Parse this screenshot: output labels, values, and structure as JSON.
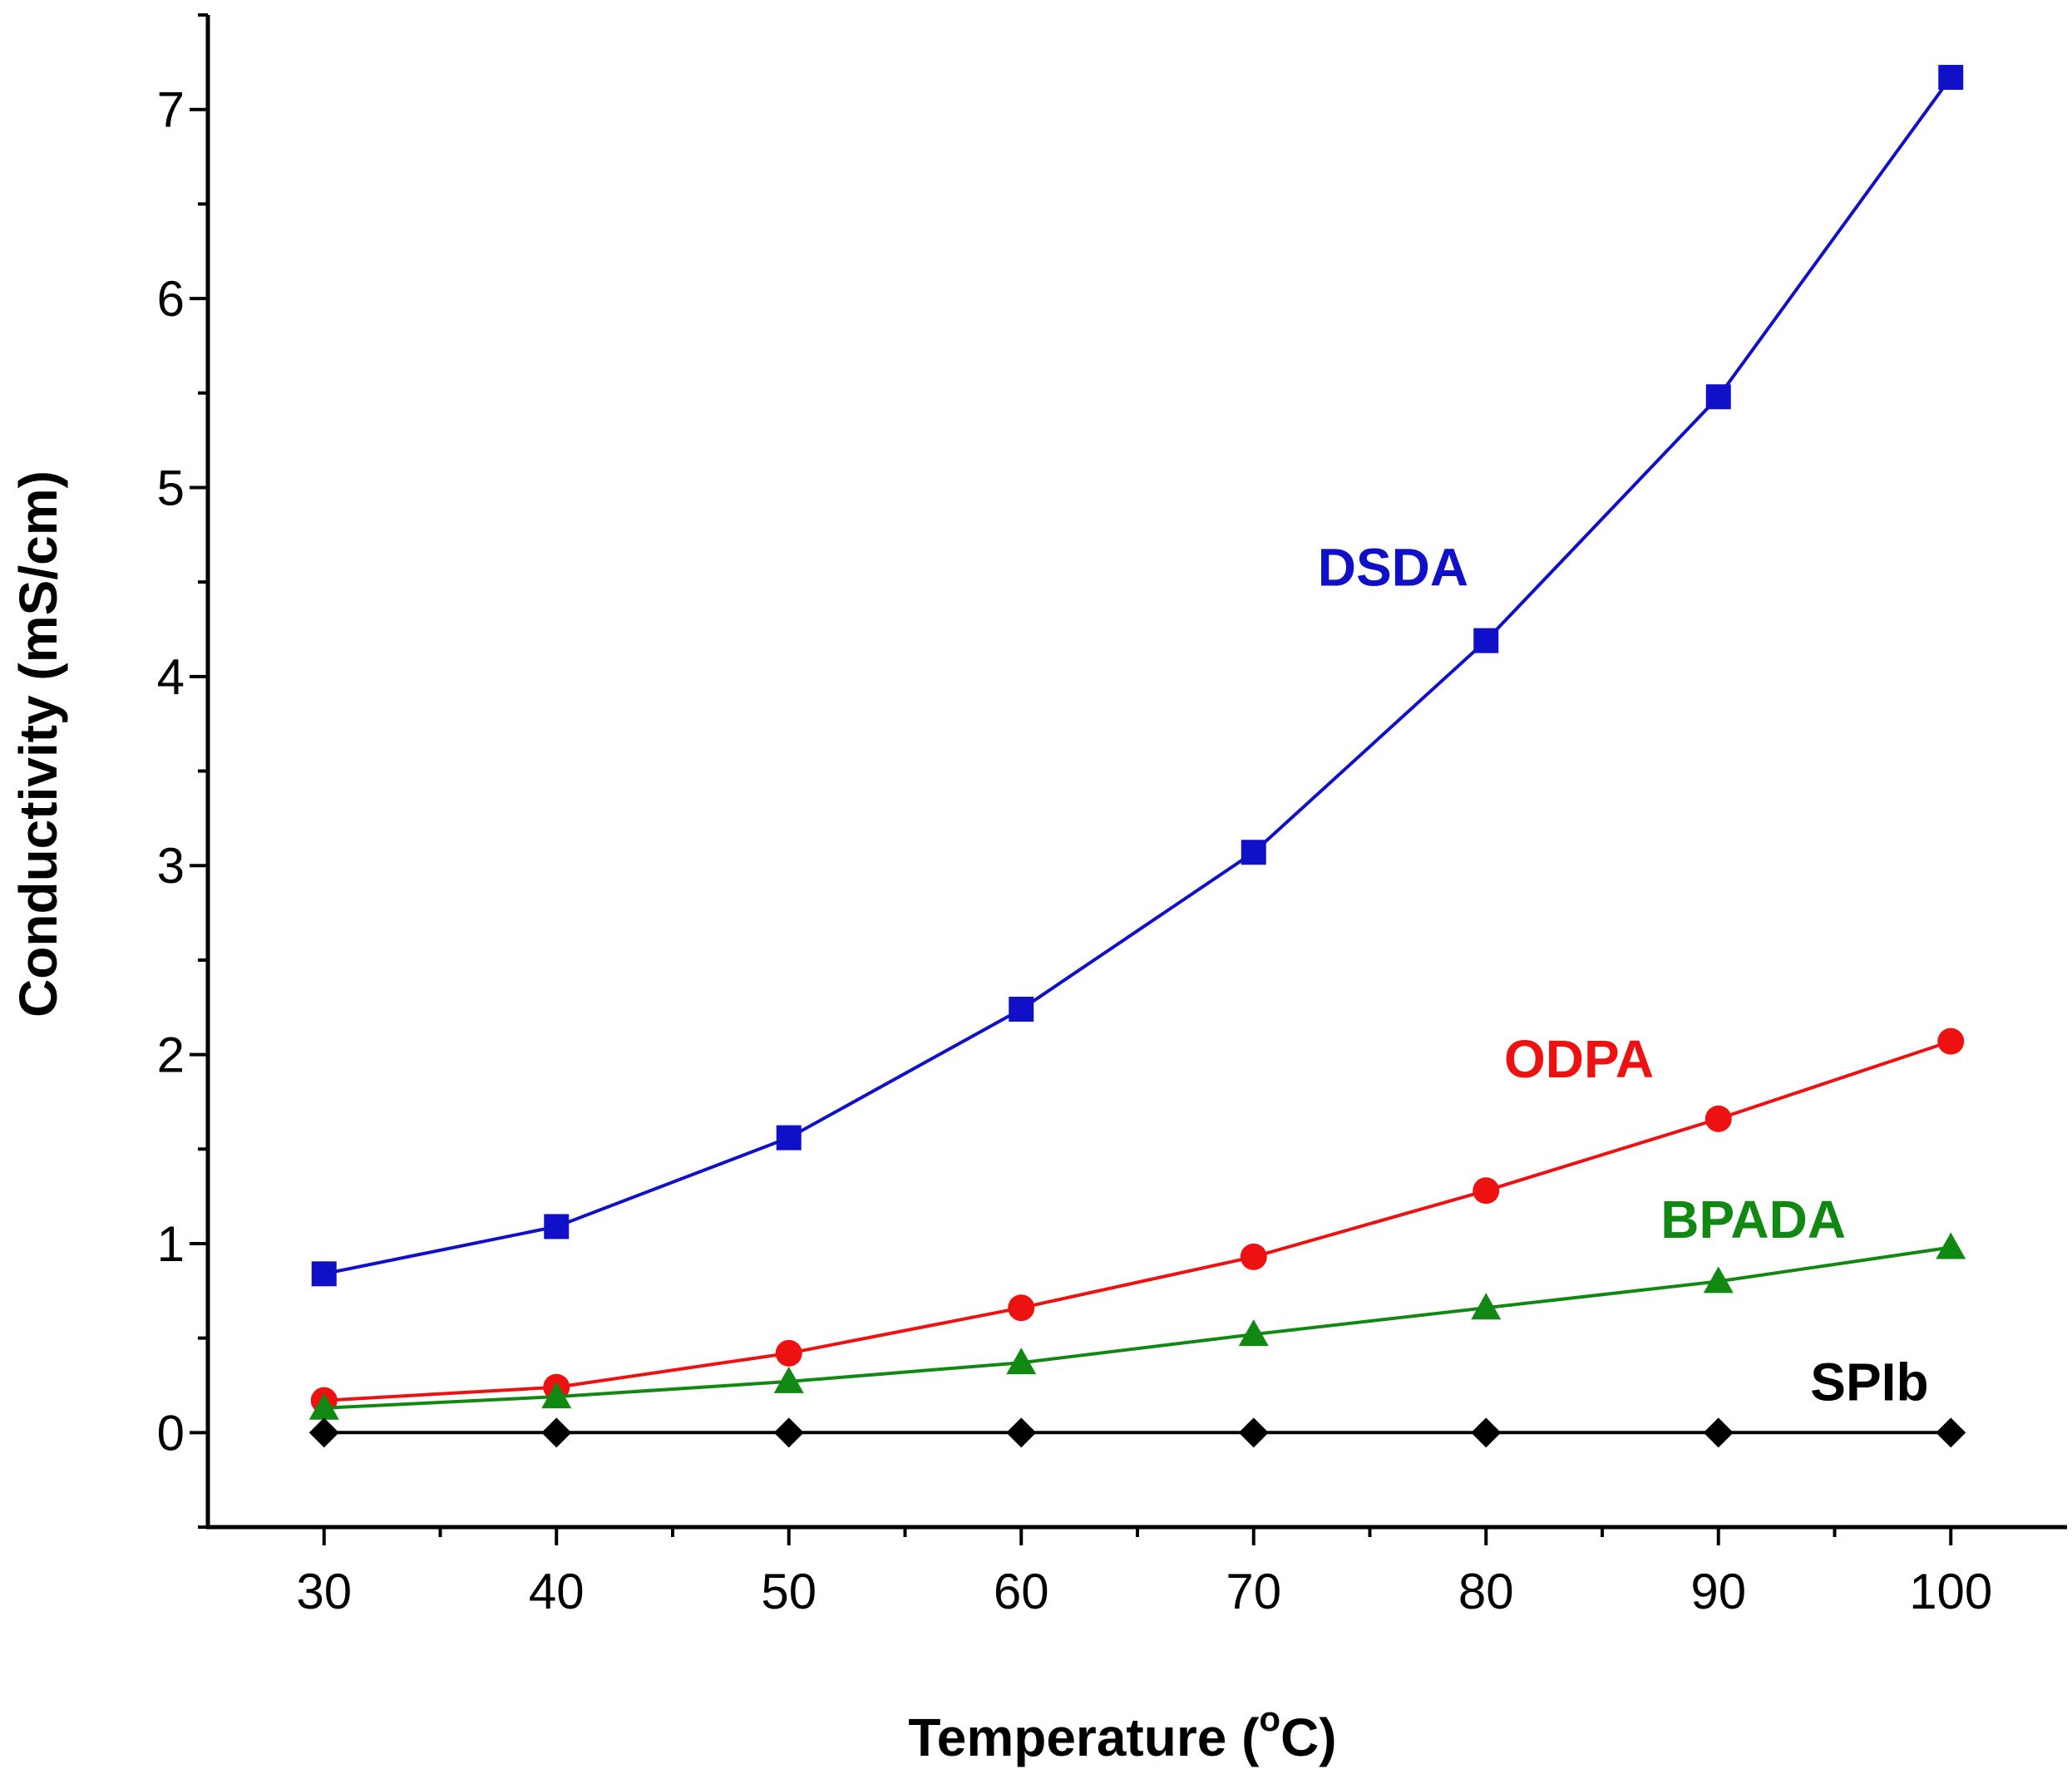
{
  "chart_data": {
    "type": "line",
    "title": "",
    "xlabel": "Temperature (°C)",
    "xlabel_parts": {
      "main": "Temperature (",
      "sup": "o",
      "unit": "C)"
    },
    "ylabel": "Conductivity (mS/cm)",
    "x": [
      30,
      40,
      50,
      60,
      70,
      80,
      90,
      100
    ],
    "xlim": [
      25,
      105
    ],
    "ylim": [
      -0.5,
      7.5
    ],
    "x_major_ticks": [
      30,
      40,
      50,
      60,
      70,
      80,
      90,
      100
    ],
    "x_minor_ticks": [
      35,
      45,
      55,
      65,
      75,
      85,
      95
    ],
    "y_major_ticks": [
      0,
      1,
      2,
      3,
      4,
      5,
      6,
      7
    ],
    "y_minor_ticks": [
      -0.5,
      0.5,
      1.5,
      2.5,
      3.5,
      4.5,
      5.5,
      6.5,
      7.5
    ],
    "grid": false,
    "series": [
      {
        "name": "DSDA",
        "color": "#1010c8",
        "marker": "square",
        "values": [
          0.84,
          1.09,
          1.56,
          2.24,
          3.07,
          4.19,
          5.48,
          7.17
        ],
        "label_pos": [
          76,
          4.48
        ]
      },
      {
        "name": "ODPA",
        "color": "#ee1111",
        "marker": "circle",
        "values": [
          0.17,
          0.24,
          0.42,
          0.66,
          0.93,
          1.28,
          1.66,
          2.07
        ],
        "label_pos": [
          84,
          1.88
        ]
      },
      {
        "name": "BPADA",
        "color": "#118811",
        "marker": "triangle",
        "values": [
          0.13,
          0.19,
          0.27,
          0.37,
          0.52,
          0.66,
          0.8,
          0.98
        ],
        "label_pos": [
          91.5,
          1.03
        ]
      },
      {
        "name": "SPIb",
        "color": "#000000",
        "marker": "diamond",
        "values": [
          0,
          0,
          0,
          0,
          0,
          0,
          0,
          0
        ],
        "label_pos": [
          96.5,
          0.17
        ]
      }
    ]
  }
}
